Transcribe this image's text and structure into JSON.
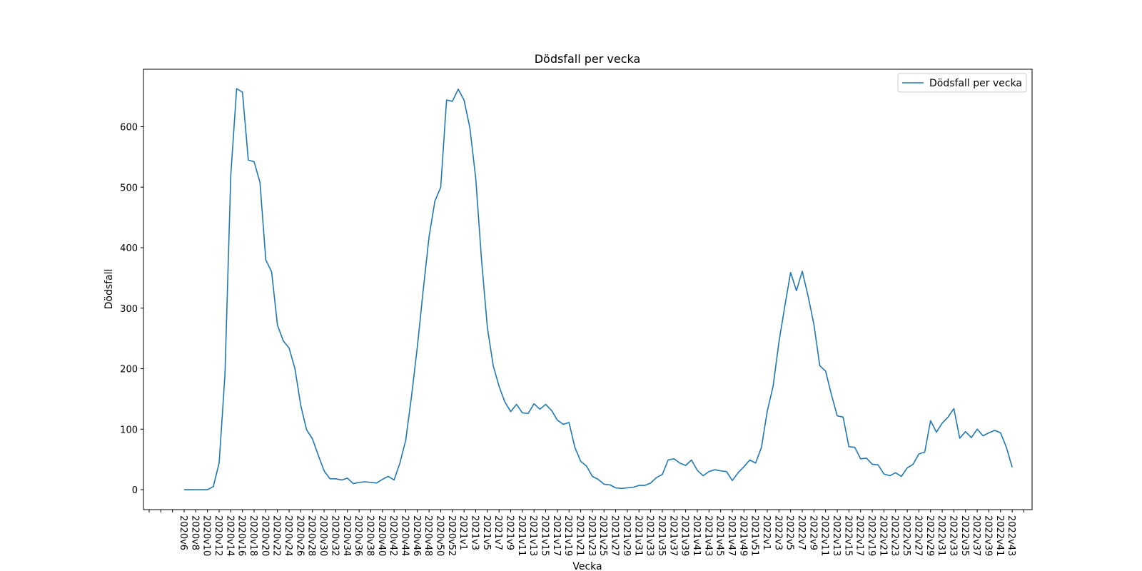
{
  "chart_data": {
    "type": "line",
    "title": "Dödsfall per vecka",
    "xlabel": "Vecka",
    "ylabel": "Dödsfall",
    "ylim": [
      -33,
      695
    ],
    "yticks": [
      0,
      100,
      200,
      300,
      400,
      500,
      600
    ],
    "grid": false,
    "legend_position": "top-right",
    "series_color": "#1f77b4",
    "x": [
      "2020v6",
      "2020v7",
      "2020v8",
      "2020v9",
      "2020v10",
      "2020v11",
      "2020v12",
      "2020v13",
      "2020v14",
      "2020v15",
      "2020v16",
      "2020v17",
      "2020v18",
      "2020v19",
      "2020v20",
      "2020v21",
      "2020v22",
      "2020v23",
      "2020v24",
      "2020v25",
      "2020v26",
      "2020v27",
      "2020v28",
      "2020v29",
      "2020v30",
      "2020v31",
      "2020v32",
      "2020v33",
      "2020v34",
      "2020v35",
      "2020v36",
      "2020v37",
      "2020v38",
      "2020v39",
      "2020v40",
      "2020v41",
      "2020v42",
      "2020v43",
      "2020v44",
      "2020v45",
      "2020v46",
      "2020v47",
      "2020v48",
      "2020v49",
      "2020v50",
      "2020v51",
      "2020v52",
      "2020v53",
      "2021v1",
      "2021v2",
      "2021v3",
      "2021v4",
      "2021v5",
      "2021v6",
      "2021v7",
      "2021v8",
      "2021v9",
      "2021v10",
      "2021v11",
      "2021v12",
      "2021v13",
      "2021v14",
      "2021v15",
      "2021v16",
      "2021v17",
      "2021v18",
      "2021v19",
      "2021v20",
      "2021v21",
      "2021v22",
      "2021v23",
      "2021v24",
      "2021v25",
      "2021v26",
      "2021v27",
      "2021v28",
      "2021v29",
      "2021v30",
      "2021v31",
      "2021v32",
      "2021v33",
      "2021v34",
      "2021v35",
      "2021v36",
      "2021v37",
      "2021v38",
      "2021v39",
      "2021v40",
      "2021v41",
      "2021v42",
      "2021v43",
      "2021v44",
      "2021v45",
      "2021v46",
      "2021v47",
      "2021v48",
      "2021v49",
      "2021v50",
      "2021v51",
      "2021v52",
      "2022v1",
      "2022v2",
      "2022v3",
      "2022v4",
      "2022v5",
      "2022v6",
      "2022v7",
      "2022v8",
      "2022v9",
      "2022v10",
      "2022v11",
      "2022v12",
      "2022v13",
      "2022v14",
      "2022v15",
      "2022v16",
      "2022v17",
      "2022v18",
      "2022v19",
      "2022v20",
      "2022v21",
      "2022v22",
      "2022v23",
      "2022v24",
      "2022v25",
      "2022v26",
      "2022v27",
      "2022v28",
      "2022v29",
      "2022v30",
      "2022v31",
      "2022v32",
      "2022v33",
      "2022v34",
      "2022v35",
      "2022v36",
      "2022v37",
      "2022v38",
      "2022v39",
      "2022v40",
      "2022v41",
      "2022v42",
      "2022v43"
    ],
    "tick_labels": [
      "2020v6",
      "2020v8",
      "2020v10",
      "2020v12",
      "2020v14",
      "2020v16",
      "2020v18",
      "2020v20",
      "2020v22",
      "2020v24",
      "2020v26",
      "2020v28",
      "2020v30",
      "2020v32",
      "2020v34",
      "2020v36",
      "2020v38",
      "2020v40",
      "2020v42",
      "2020v44",
      "2020v46",
      "2020v48",
      "2020v50",
      "2020v52",
      "2021v1",
      "2021v3",
      "2021v5",
      "2021v7",
      "2021v9",
      "2021v11",
      "2021v13",
      "2021v15",
      "2021v17",
      "2021v19",
      "2021v21",
      "2021v23",
      "2021v25",
      "2021v27",
      "2021v29",
      "2021v31",
      "2021v33",
      "2021v35",
      "2021v37",
      "2021v39",
      "2021v41",
      "2021v43",
      "2021v45",
      "2021v47",
      "2021v49",
      "2021v51",
      "2022v1",
      "2022v3",
      "2022v5",
      "2022v7",
      "2022v9",
      "2022v11",
      "2022v13",
      "2022v15",
      "2022v17",
      "2022v19",
      "2022v21",
      "2022v23",
      "2022v25",
      "2022v27",
      "2022v29",
      "2022v31",
      "2022v33",
      "2022v35",
      "2022v37",
      "2022v39",
      "2022v41",
      "2022v43"
    ],
    "series": [
      {
        "name": "Dödsfall per vecka",
        "values": [
          0,
          0,
          0,
          0,
          0,
          5,
          44,
          190,
          520,
          663,
          657,
          545,
          542,
          508,
          380,
          360,
          272,
          246,
          234,
          200,
          139,
          99,
          84,
          57,
          31,
          18,
          18,
          16,
          19,
          10,
          12,
          13,
          12,
          11,
          17,
          22,
          16,
          44,
          82,
          155,
          237,
          330,
          418,
          477,
          500,
          644,
          642,
          662,
          644,
          598,
          515,
          380,
          268,
          205,
          171,
          145,
          129,
          141,
          127,
          126,
          142,
          133,
          141,
          131,
          115,
          108,
          111,
          70,
          47,
          39,
          22,
          17,
          9,
          8,
          3,
          2,
          3,
          4,
          7,
          7,
          11,
          20,
          25,
          49,
          51,
          44,
          40,
          49,
          32,
          23,
          30,
          33,
          31,
          30,
          15,
          28,
          38,
          49,
          44,
          70,
          130,
          171,
          244,
          303,
          359,
          329,
          361,
          320,
          273,
          205,
          196,
          157,
          122,
          120,
          71,
          70,
          51,
          52,
          42,
          41,
          26,
          23,
          28,
          22,
          36,
          42,
          59,
          62,
          114,
          95,
          110,
          120,
          134,
          85,
          96,
          86,
          100,
          89,
          94,
          98,
          94,
          70,
          37
        ]
      }
    ]
  }
}
